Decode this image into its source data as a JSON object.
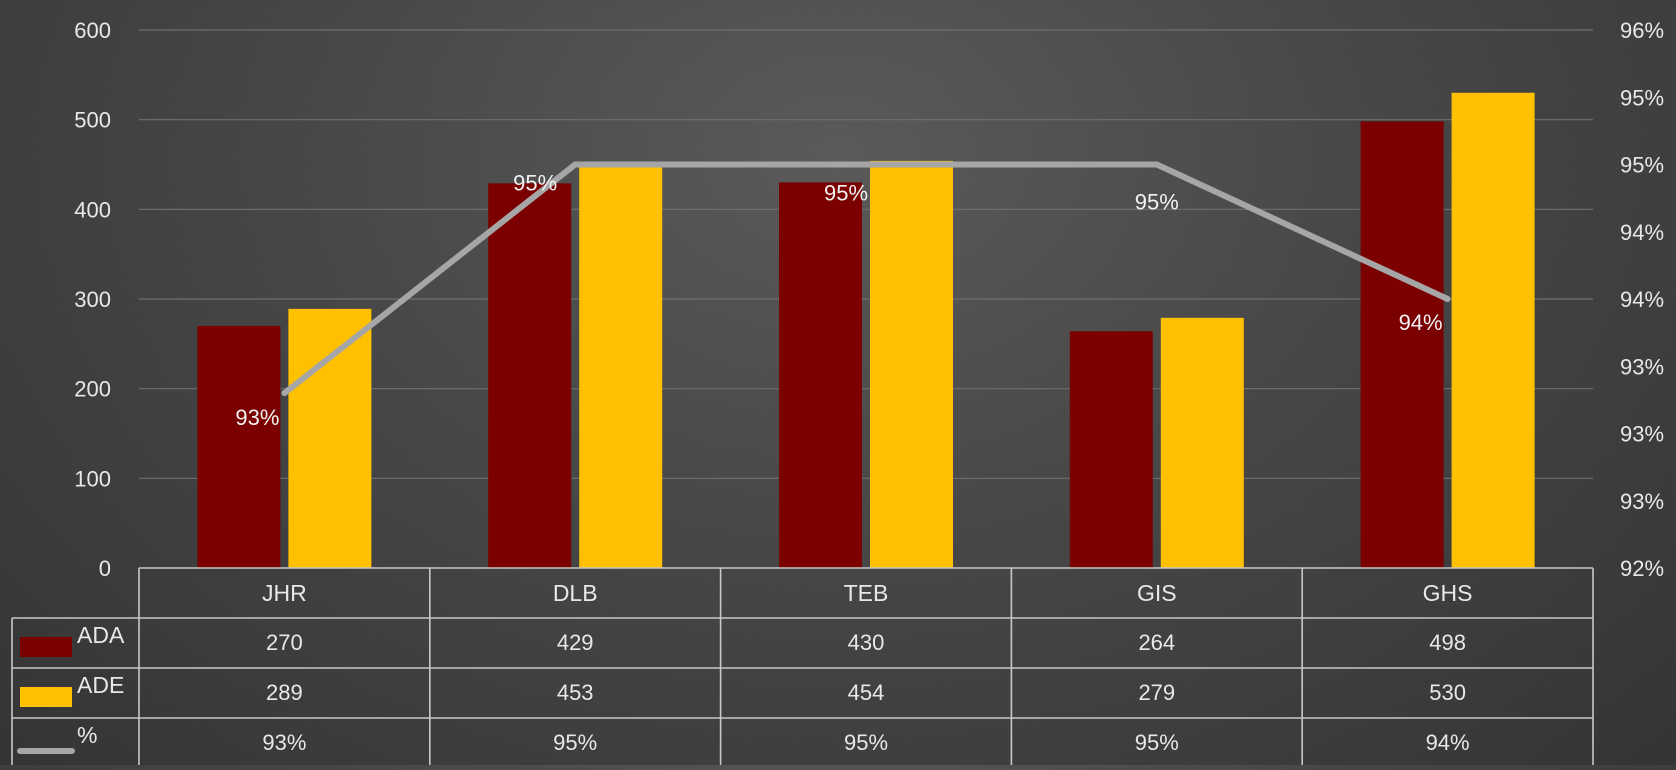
{
  "chart_data": {
    "type": "bar",
    "categories": [
      "JHR",
      "DLB",
      "TEB",
      "GIS",
      "GHS"
    ],
    "series": [
      {
        "name": "ADA",
        "type": "bar",
        "axis": "left",
        "color": "#7b0000",
        "values": [
          270,
          429,
          430,
          264,
          498
        ]
      },
      {
        "name": "ADE",
        "type": "bar",
        "axis": "left",
        "color": "#ffc000",
        "values": [
          289,
          453,
          454,
          279,
          530
        ]
      },
      {
        "name": "%",
        "type": "line",
        "axis": "right",
        "color": "#a6a6a6",
        "values": [
          93.3,
          95.0,
          95.0,
          95.0,
          94.0
        ],
        "labels": [
          "93%",
          "95%",
          "95%",
          "95%",
          "94%"
        ]
      }
    ],
    "y_left": {
      "lim": [
        0,
        600
      ],
      "ticks": [
        "0",
        "100",
        "200",
        "300",
        "400",
        "500",
        "600"
      ]
    },
    "y_right": {
      "lim": [
        92,
        96
      ],
      "ticks": [
        "92%",
        "93%",
        "93%",
        "93%",
        "94%",
        "94%",
        "95%",
        "95%",
        "96%"
      ]
    },
    "grid": true,
    "legend": "data-table",
    "data_table": {
      "rows": [
        {
          "label": "ADA",
          "values": [
            "270",
            "429",
            "430",
            "264",
            "498"
          ]
        },
        {
          "label": "ADE",
          "values": [
            "289",
            "453",
            "454",
            "279",
            "530"
          ]
        },
        {
          "label": "%",
          "values": [
            "93%",
            "95%",
            "95%",
            "95%",
            "94%"
          ]
        }
      ]
    }
  }
}
